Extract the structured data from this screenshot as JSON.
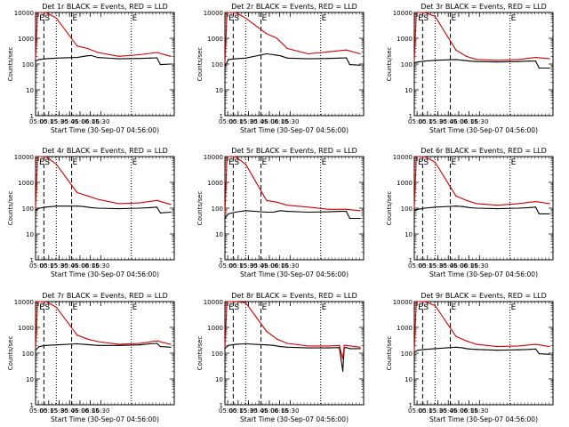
{
  "chart_data": [
    {
      "type": "line",
      "title": "Det 1r BLACK = Events, RED = LLD",
      "xlabel": "Start Time (30-Sep-07 04:56:00)",
      "ylabel": "Counts/sec",
      "yscale": "log",
      "ylim": [
        1,
        10000
      ],
      "ytick_labels": [
        "1",
        "10",
        "100",
        "1000",
        "10000"
      ],
      "xtick_labels": [
        "05:00",
        "05:15",
        "05:30",
        "05:45",
        "06:00",
        "06:15",
        "06:30"
      ],
      "region_markers": [
        "E",
        "S",
        "E",
        "E"
      ],
      "series": [
        {
          "name": "Events",
          "color": "#000000",
          "x": [
            0,
            5,
            15,
            30,
            60,
            70,
            75,
            80,
            90,
            120,
            150,
            165,
            175,
            180,
            195
          ],
          "y": [
            130,
            150,
            160,
            170,
            180,
            200,
            210,
            215,
            180,
            160,
            165,
            170,
            175,
            95,
            100
          ]
        },
        {
          "name": "LLD",
          "color": "#d40000",
          "x": [
            0,
            3,
            15,
            30,
            60,
            75,
            90,
            120,
            150,
            175,
            195
          ],
          "y": [
            160,
            10000,
            10000,
            6000,
            500,
            400,
            280,
            200,
            230,
            280,
            200
          ]
        }
      ]
    },
    {
      "type": "line",
      "title": "Det 2r BLACK = Events, RED = LLD",
      "xlabel": "Start Time (30-Sep-07 04:56:00)",
      "ylabel": "Counts/sec",
      "yscale": "log",
      "ylim": [
        1,
        10000
      ],
      "ytick_labels": [
        "1",
        "10",
        "100",
        "1000",
        "10000"
      ],
      "xtick_labels": [
        "05:00",
        "05:15",
        "05:30",
        "05:45",
        "06:00",
        "06:15",
        "06:30"
      ],
      "region_markers": [
        "E",
        "S",
        "E",
        "E"
      ],
      "series": [
        {
          "name": "Events",
          "color": "#000000",
          "x": [
            0,
            5,
            15,
            30,
            60,
            70,
            75,
            80,
            90,
            120,
            150,
            165,
            175,
            180,
            195
          ],
          "y": [
            80,
            150,
            160,
            170,
            250,
            230,
            220,
            210,
            170,
            160,
            165,
            170,
            175,
            95,
            90
          ]
        },
        {
          "name": "LLD",
          "color": "#d40000",
          "x": [
            0,
            3,
            15,
            30,
            60,
            75,
            90,
            120,
            150,
            175,
            195
          ],
          "y": [
            110,
            10000,
            10000,
            6000,
            1500,
            1000,
            400,
            250,
            300,
            350,
            250
          ]
        }
      ]
    },
    {
      "type": "line",
      "title": "Det 3r BLACK = Events, RED = LLD",
      "xlabel": "Start Time (30-Sep-07 04:56:00)",
      "ylabel": "Counts/sec",
      "yscale": "log",
      "ylim": [
        1,
        10000
      ],
      "ytick_labels": [
        "1",
        "10",
        "100",
        "1000",
        "10000"
      ],
      "xtick_labels": [
        "05:00",
        "05:15",
        "05:30",
        "05:45",
        "06:00",
        "06:15",
        "06:30"
      ],
      "region_markers": [
        "E",
        "S",
        "E",
        "E"
      ],
      "series": [
        {
          "name": "Events",
          "color": "#000000",
          "x": [
            0,
            5,
            15,
            30,
            60,
            70,
            75,
            80,
            90,
            120,
            150,
            165,
            175,
            180,
            195
          ],
          "y": [
            110,
            120,
            130,
            140,
            150,
            140,
            135,
            130,
            125,
            120,
            125,
            130,
            130,
            70,
            70
          ]
        },
        {
          "name": "LLD",
          "color": "#d40000",
          "x": [
            0,
            3,
            15,
            30,
            60,
            75,
            90,
            120,
            150,
            175,
            195
          ],
          "y": [
            130,
            10000,
            10000,
            7000,
            350,
            200,
            150,
            140,
            150,
            180,
            160
          ]
        }
      ]
    },
    {
      "type": "line",
      "title": "Det 4r BLACK = Events, RED = LLD",
      "xlabel": "Start Time (30-Sep-07 04:56:00)",
      "ylabel": "Counts/sec",
      "yscale": "log",
      "ylim": [
        1,
        10000
      ],
      "ytick_labels": [
        "1",
        "10",
        "100",
        "1000",
        "10000"
      ],
      "xtick_labels": [
        "05:00",
        "05:15",
        "05:30",
        "05:45",
        "06:00",
        "06:15",
        "06:30"
      ],
      "region_markers": [
        "E",
        "S",
        "E",
        "E"
      ],
      "series": [
        {
          "name": "Events",
          "color": "#000000",
          "x": [
            0,
            5,
            15,
            30,
            60,
            70,
            75,
            80,
            90,
            120,
            150,
            165,
            175,
            180,
            195
          ],
          "y": [
            80,
            100,
            110,
            120,
            120,
            115,
            110,
            105,
            100,
            95,
            100,
            105,
            110,
            65,
            70
          ]
        },
        {
          "name": "LLD",
          "color": "#d40000",
          "x": [
            0,
            3,
            15,
            30,
            60,
            75,
            90,
            120,
            150,
            175,
            195
          ],
          "y": [
            100,
            10000,
            10000,
            5000,
            400,
            300,
            220,
            150,
            160,
            200,
            140
          ]
        }
      ]
    },
    {
      "type": "line",
      "title": "Det 5r BLACK = Events, RED = LLD",
      "xlabel": "Start Time (30-Sep-07 04:56:00)",
      "ylabel": "Counts/sec",
      "yscale": "log",
      "ylim": [
        1,
        10000
      ],
      "ytick_labels": [
        "1",
        "10",
        "100",
        "1000",
        "10000"
      ],
      "xtick_labels": [
        "05:00",
        "05:15",
        "05:30",
        "05:45",
        "06:00",
        "06:15",
        "06:30"
      ],
      "region_markers": [
        "E",
        "S",
        "E",
        "E"
      ],
      "series": [
        {
          "name": "Events",
          "color": "#000000",
          "x": [
            0,
            5,
            15,
            30,
            60,
            70,
            75,
            80,
            90,
            120,
            150,
            165,
            175,
            180,
            195
          ],
          "y": [
            40,
            60,
            70,
            80,
            70,
            70,
            75,
            80,
            75,
            70,
            72,
            75,
            75,
            40,
            40
          ]
        },
        {
          "name": "LLD",
          "color": "#d40000",
          "x": [
            0,
            3,
            15,
            30,
            60,
            75,
            90,
            120,
            150,
            175,
            195
          ],
          "y": [
            60,
            10000,
            10000,
            5000,
            200,
            170,
            130,
            110,
            90,
            90,
            80
          ]
        }
      ]
    },
    {
      "type": "line",
      "title": "Det 6r BLACK = Events, RED = LLD",
      "xlabel": "Start Time (30-Sep-07 04:56:00)",
      "ylabel": "Counts/sec",
      "yscale": "log",
      "ylim": [
        1,
        10000
      ],
      "ytick_labels": [
        "1",
        "10",
        "100",
        "1000",
        "10000"
      ],
      "xtick_labels": [
        "05:00",
        "05:15",
        "05:30",
        "05:45",
        "06:00",
        "06:15",
        "06:30"
      ],
      "region_markers": [
        "E",
        "S",
        "E",
        "E"
      ],
      "series": [
        {
          "name": "Events",
          "color": "#000000",
          "x": [
            0,
            5,
            15,
            30,
            60,
            70,
            75,
            80,
            90,
            120,
            150,
            165,
            175,
            180,
            195
          ],
          "y": [
            80,
            90,
            100,
            110,
            120,
            115,
            110,
            105,
            100,
            95,
            100,
            105,
            110,
            60,
            60
          ]
        },
        {
          "name": "LLD",
          "color": "#d40000",
          "x": [
            0,
            3,
            15,
            30,
            60,
            75,
            90,
            120,
            150,
            175,
            195
          ],
          "y": [
            100,
            10000,
            10000,
            6000,
            300,
            200,
            150,
            130,
            150,
            180,
            150
          ]
        }
      ]
    },
    {
      "type": "line",
      "title": "Det 7r BLACK = Events, RED = LLD",
      "xlabel": "Start Time (30-Sep-07 04:56:00)",
      "ylabel": "Counts/sec",
      "yscale": "log",
      "ylim": [
        1,
        10000
      ],
      "ytick_labels": [
        "1",
        "10",
        "100",
        "1000",
        "10000"
      ],
      "xtick_labels": [
        "05:00",
        "05:15",
        "05:30",
        "05:45",
        "06:00",
        "06:15",
        "06:30"
      ],
      "region_markers": [
        "E",
        "S",
        "E",
        "E"
      ],
      "series": [
        {
          "name": "Events",
          "color": "#000000",
          "x": [
            0,
            5,
            15,
            30,
            60,
            70,
            75,
            80,
            90,
            120,
            150,
            165,
            175,
            180,
            195
          ],
          "y": [
            130,
            180,
            200,
            210,
            230,
            220,
            215,
            210,
            200,
            200,
            210,
            230,
            240,
            180,
            170
          ]
        },
        {
          "name": "LLD",
          "color": "#d40000",
          "x": [
            0,
            3,
            15,
            30,
            60,
            75,
            90,
            120,
            150,
            175,
            195
          ],
          "y": [
            150,
            10000,
            10000,
            6000,
            500,
            350,
            280,
            220,
            240,
            300,
            220
          ]
        }
      ]
    },
    {
      "type": "line",
      "title": "Det 8r BLACK = Events, RED = LLD",
      "xlabel": "Start Time (30-Sep-07 04:56:00)",
      "ylabel": "Counts/sec",
      "yscale": "log",
      "ylim": [
        1,
        10000
      ],
      "ytick_labels": [
        "1",
        "10",
        "100",
        "1000",
        "10000"
      ],
      "xtick_labels": [
        "05:00",
        "05:15",
        "05:30",
        "05:45",
        "06:00",
        "06:15",
        "06:30"
      ],
      "region_markers": [
        "E",
        "S",
        "E",
        "E"
      ],
      "series": [
        {
          "name": "Events",
          "color": "#000000",
          "x": [
            0,
            5,
            15,
            30,
            60,
            70,
            75,
            80,
            90,
            120,
            150,
            165,
            170,
            172,
            175,
            180,
            195
          ],
          "y": [
            150,
            200,
            220,
            230,
            210,
            200,
            190,
            180,
            170,
            160,
            160,
            165,
            20,
            160,
            165,
            150,
            150
          ]
        },
        {
          "name": "LLD",
          "color": "#d40000",
          "x": [
            0,
            3,
            15,
            30,
            60,
            75,
            90,
            120,
            150,
            165,
            170,
            172,
            175,
            195
          ],
          "y": [
            170,
            10000,
            10000,
            9000,
            700,
            350,
            240,
            190,
            190,
            200,
            60,
            200,
            200,
            170
          ]
        }
      ]
    },
    {
      "type": "line",
      "title": "Det 9r BLACK = Events, RED = LLD",
      "xlabel": "Start Time (30-Sep-07 04:56:00)",
      "ylabel": "Counts/sec",
      "yscale": "log",
      "ylim": [
        1,
        10000
      ],
      "ytick_labels": [
        "1",
        "10",
        "100",
        "1000",
        "10000"
      ],
      "xtick_labels": [
        "05:00",
        "05:15",
        "05:30",
        "05:45",
        "06:00",
        "06:15",
        "06:30"
      ],
      "region_markers": [
        "E",
        "S",
        "E",
        "E"
      ],
      "series": [
        {
          "name": "Events",
          "color": "#000000",
          "x": [
            0,
            5,
            15,
            30,
            60,
            70,
            75,
            80,
            90,
            120,
            150,
            165,
            175,
            180,
            195
          ],
          "y": [
            110,
            130,
            140,
            150,
            170,
            160,
            150,
            145,
            140,
            130,
            135,
            140,
            145,
            95,
            90
          ]
        },
        {
          "name": "LLD",
          "color": "#d40000",
          "x": [
            0,
            3,
            15,
            30,
            60,
            75,
            90,
            120,
            150,
            175,
            195
          ],
          "y": [
            130,
            10000,
            10000,
            7000,
            450,
            300,
            220,
            180,
            190,
            220,
            180
          ]
        }
      ]
    }
  ]
}
